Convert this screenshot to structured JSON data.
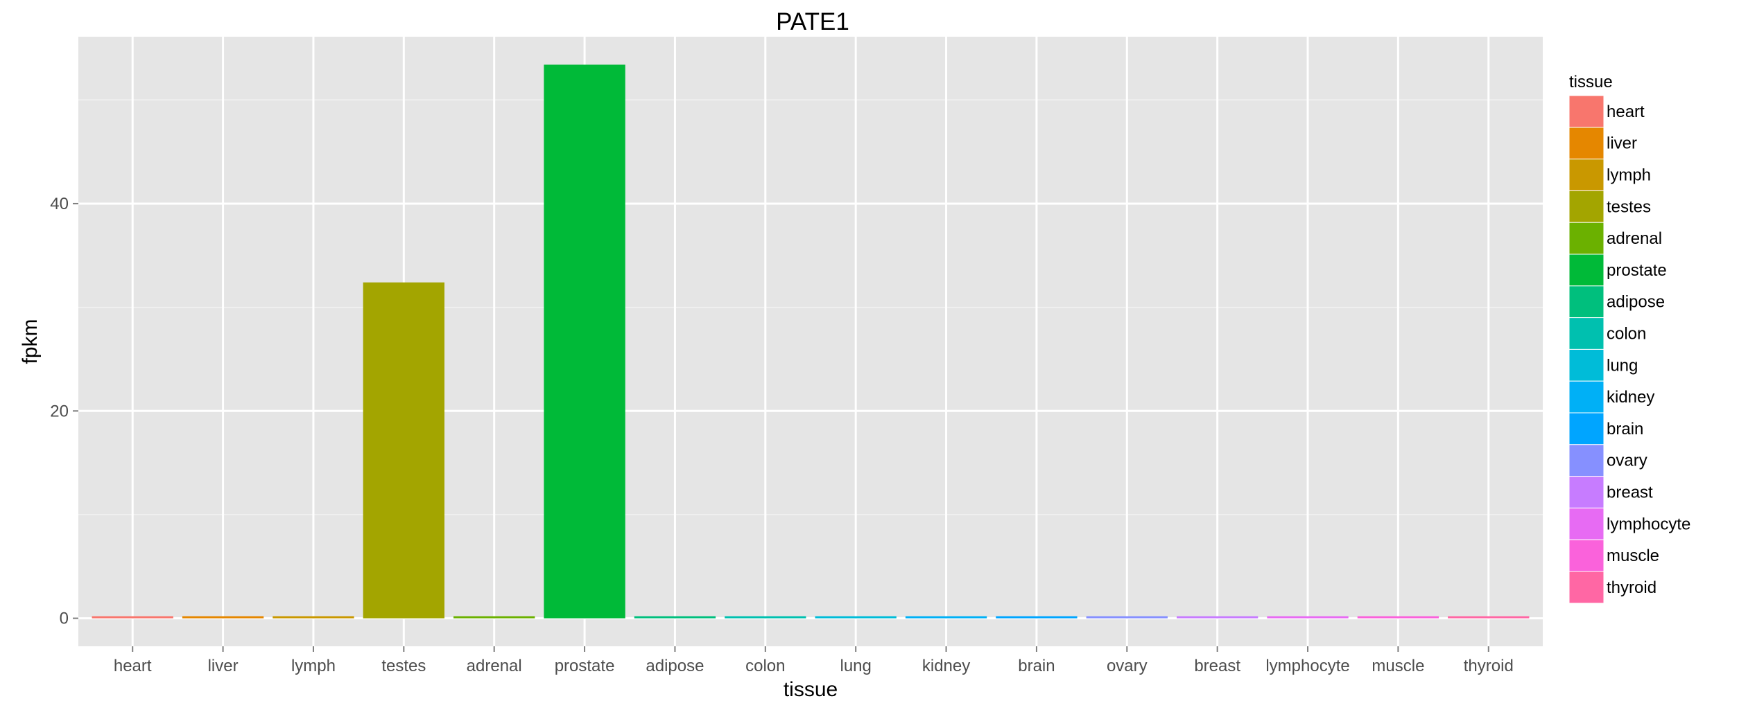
{
  "chart_data": {
    "type": "bar",
    "title": "PATE1",
    "xlabel": "tissue",
    "ylabel": "fpkm",
    "categories": [
      "heart",
      "liver",
      "lymph",
      "testes",
      "adrenal",
      "prostate",
      "adipose",
      "colon",
      "lung",
      "kidney",
      "brain",
      "ovary",
      "breast",
      "lymphocyte",
      "muscle",
      "thyroid"
    ],
    "values": [
      0.05,
      0.05,
      0.05,
      32.4,
      0.05,
      53.4,
      0.05,
      0.05,
      0.05,
      0.05,
      0.05,
      0.05,
      0.05,
      0.05,
      0.05,
      0.05
    ],
    "colors": [
      "#F8766D",
      "#E58700",
      "#C99800",
      "#A3A500",
      "#6BB100",
      "#00BA38",
      "#00BF7D",
      "#00C0AF",
      "#00BCD8",
      "#00B0F6",
      "#00A5FF",
      "#8690FF",
      "#C77CFF",
      "#E76BF3",
      "#FA62DB",
      "#FF67A4"
    ],
    "y_ticks": [
      0,
      20,
      40
    ],
    "ylim": [
      -2.7,
      56.1
    ],
    "grid": true,
    "legend": {
      "title": "tissue",
      "position": "right",
      "entries": [
        "heart",
        "liver",
        "lymph",
        "testes",
        "adrenal",
        "prostate",
        "adipose",
        "colon",
        "lung",
        "kidney",
        "brain",
        "ovary",
        "breast",
        "lymphocyte",
        "muscle",
        "thyroid"
      ]
    }
  }
}
